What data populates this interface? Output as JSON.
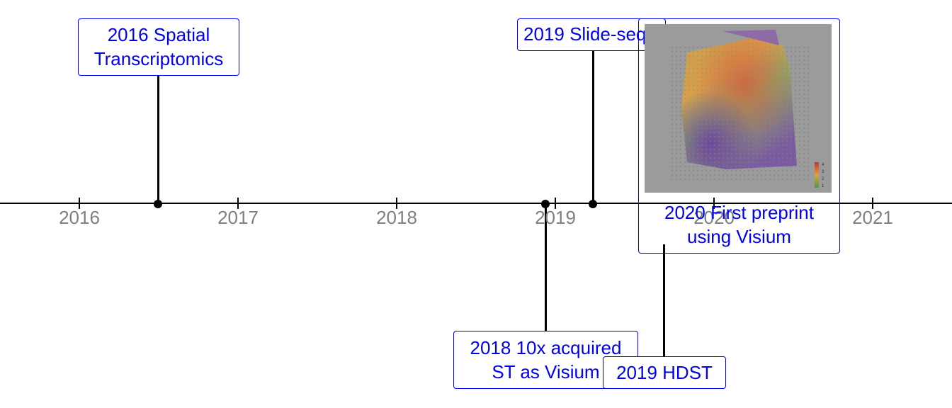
{
  "axis": {
    "ticks": [
      "2016",
      "2017",
      "2018",
      "2019",
      "2020",
      "2021"
    ]
  },
  "events": [
    {
      "id": "st2016",
      "label": "2016 Spatial\nTranscriptomics",
      "side": "above"
    },
    {
      "id": "slideseq2019",
      "label": "2019 Slide-seq",
      "side": "above"
    },
    {
      "id": "visium2018",
      "label": "2018 10x acquired\nST as Visium",
      "side": "below"
    },
    {
      "id": "hdst2019",
      "label": "2019 HDST",
      "side": "below"
    },
    {
      "id": "preprint2020",
      "label": "2020 First preprint\nusing Visium",
      "side": "above"
    }
  ],
  "image": {
    "description_icon": "tissue-spatial-expression-image",
    "colorbar_ticks": [
      "4",
      "3",
      "2",
      "1"
    ]
  },
  "colors": {
    "label_text": "#0000ee",
    "axis": "#000000",
    "tick_label": "#7f7f7f"
  }
}
